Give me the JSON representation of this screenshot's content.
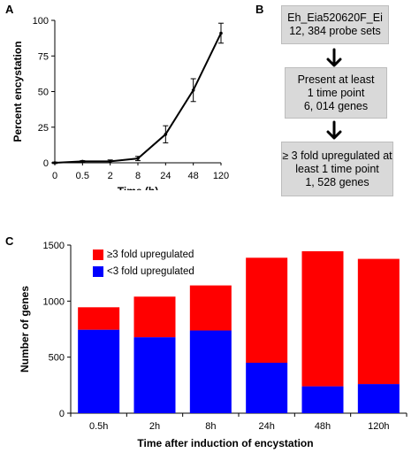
{
  "panels": {
    "a_label": "A",
    "b_label": "B",
    "c_label": "C"
  },
  "chart_data": [
    {
      "panel": "A",
      "type": "line",
      "x": [
        "0",
        "0.5",
        "2",
        "8",
        "24",
        "48",
        "120"
      ],
      "series": [
        {
          "values": [
            0,
            1,
            1,
            3,
            20,
            51,
            91
          ],
          "error": [
            0.5,
            0.5,
            1,
            1.5,
            6,
            8,
            7
          ]
        }
      ],
      "xlabel": "Time (h)",
      "ylabel": "Percent encystation",
      "ylim": [
        0,
        100
      ],
      "yticks": [
        0,
        25,
        50,
        75,
        100
      ],
      "grid": false,
      "colors": {
        "line": "#000000"
      }
    },
    {
      "panel": "C",
      "type": "bar",
      "stacked": true,
      "categories": [
        "0.5h",
        "2h",
        "8h",
        "24h",
        "48h",
        "120h"
      ],
      "series": [
        {
          "name": "<3 fold upregulated",
          "color": "#0000ff",
          "values": [
            745,
            678,
            738,
            450,
            240,
            260
          ]
        },
        {
          "name": "≥3 fold upregulated",
          "color": "#ff0000",
          "values": [
            200,
            362,
            402,
            937,
            1205,
            1117
          ]
        }
      ],
      "xlabel": "Time after induction of encystation",
      "ylabel": "Number of genes",
      "ylim": [
        0,
        1500
      ],
      "yticks": [
        0,
        500,
        1000,
        1500
      ],
      "legend_placement": "top-left",
      "grid": false
    }
  ],
  "flowchart": {
    "boxes": [
      {
        "lines": [
          "Eh_Eia520620F_Ei",
          "12, 384 probe sets"
        ]
      },
      {
        "lines": [
          "Present at least",
          "1 time point",
          "6, 014 genes"
        ]
      },
      {
        "lines": [
          "≥ 3 fold upregulated at",
          "least 1 time point",
          "1, 528 genes"
        ]
      }
    ],
    "colors": {
      "box_fill": "#d9d9d9",
      "arrow": "#000000"
    }
  }
}
